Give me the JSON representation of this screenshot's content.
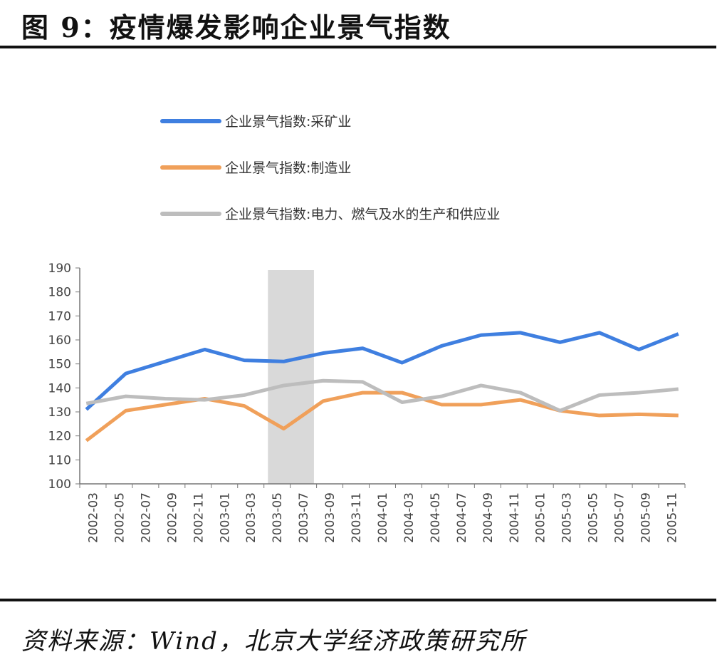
{
  "title": "图 9：疫情爆发影响企业景气指数",
  "source": "资料来源：Wind，北京大学经济政策研究所",
  "chart_data": {
    "type": "line",
    "ylim": [
      100,
      190
    ],
    "yticks": [
      100,
      110,
      120,
      130,
      140,
      150,
      160,
      170,
      180,
      190
    ],
    "xtick_labels": [
      "2002-03",
      "2002-05",
      "2002-07",
      "2002-09",
      "2002-11",
      "2003-01",
      "2003-03",
      "2003-05",
      "2003-07",
      "2003-09",
      "2003-11",
      "2004-01",
      "2004-03",
      "2004-05",
      "2004-07",
      "2004-09",
      "2004-11",
      "2005-01",
      "2005-03",
      "2005-05",
      "2005-07",
      "2005-09",
      "2005-11"
    ],
    "x": [
      "2002-03",
      "2002-06",
      "2002-09",
      "2002-12",
      "2003-03",
      "2003-06",
      "2003-09",
      "2003-12",
      "2004-03",
      "2004-06",
      "2004-09",
      "2004-12",
      "2005-03",
      "2005-06",
      "2005-09",
      "2005-12"
    ],
    "shaded_period": [
      "2003-05",
      "2003-08"
    ],
    "legend_position": "top-left",
    "series": [
      {
        "name": "企业景气指数:采矿业",
        "color": "#3f7fe0",
        "values": [
          131,
          146,
          151,
          156,
          151.5,
          151,
          154.5,
          156.5,
          150.5,
          157.5,
          162,
          163,
          159,
          163,
          156,
          162.5
        ]
      },
      {
        "name": "企业景气指数:制造业",
        "color": "#f0a05a",
        "values": [
          118,
          130.5,
          133,
          135.5,
          132.5,
          123,
          134.5,
          138,
          138,
          133,
          133,
          135,
          130.5,
          128.5,
          129,
          128.5
        ]
      },
      {
        "name": "企业景气指数:电力、燃气及水的生产和供应业",
        "color": "#bdbdbd",
        "values": [
          133.5,
          136.5,
          135.5,
          135,
          137,
          141,
          143,
          142.5,
          134,
          136.5,
          141,
          138,
          130.5,
          137,
          138,
          139.5
        ]
      }
    ]
  }
}
